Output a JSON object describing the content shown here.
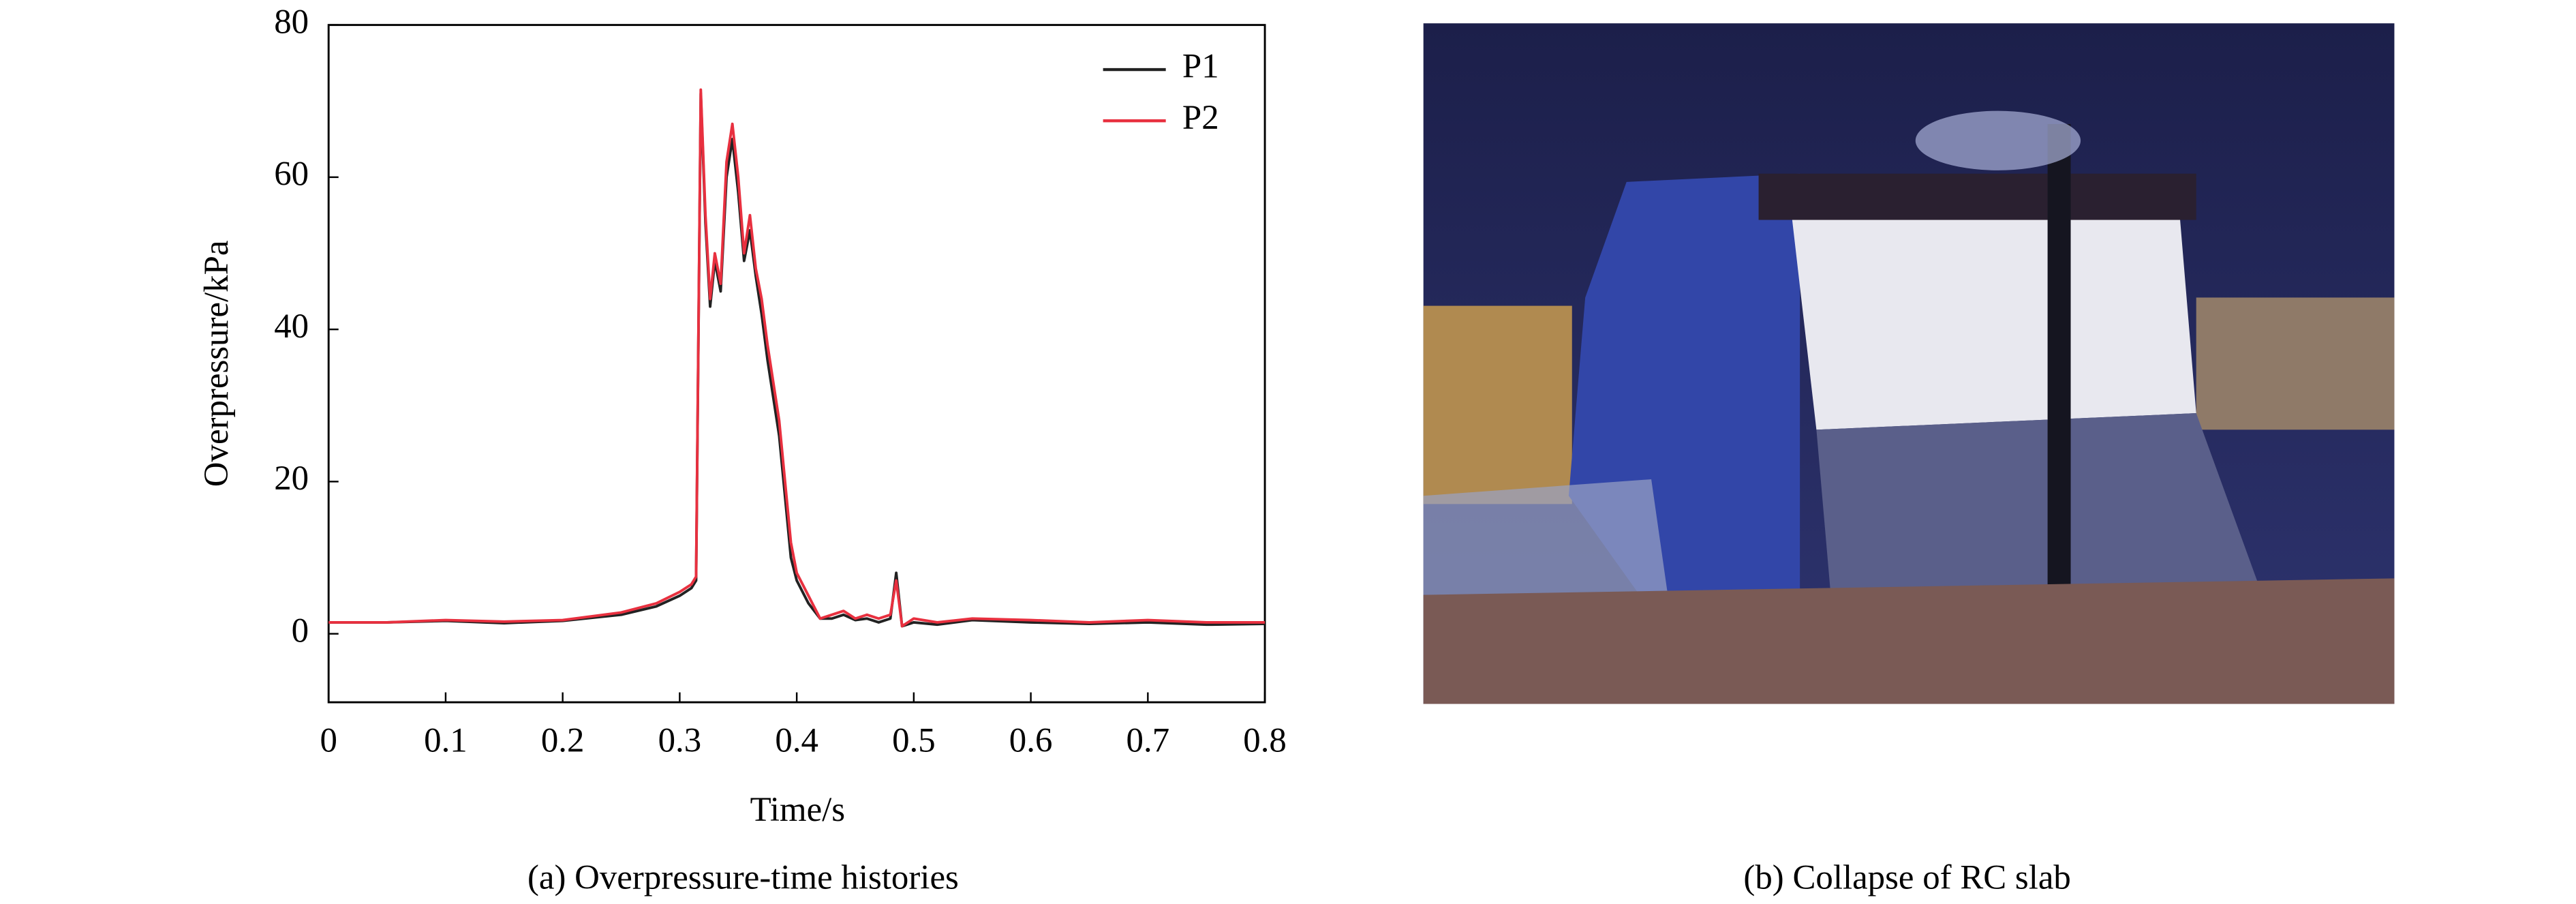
{
  "chart_data": {
    "type": "line",
    "caption": "(a) Overpressure-time histories",
    "xlabel": "Time/s",
    "ylabel": "Overpressure/kPa",
    "xlim": [
      0,
      0.8
    ],
    "ylim": [
      -9,
      80
    ],
    "xticks": [
      0,
      0.1,
      0.2,
      0.3,
      0.4,
      0.5,
      0.6,
      0.7,
      0.8
    ],
    "yticks": [
      0,
      20,
      40,
      60,
      80
    ],
    "legend": "upper right",
    "x": [
      0,
      0.05,
      0.1,
      0.15,
      0.2,
      0.25,
      0.28,
      0.3,
      0.31,
      0.314,
      0.318,
      0.322,
      0.326,
      0.33,
      0.335,
      0.34,
      0.345,
      0.35,
      0.355,
      0.36,
      0.365,
      0.37,
      0.375,
      0.38,
      0.385,
      0.39,
      0.395,
      0.4,
      0.41,
      0.42,
      0.43,
      0.44,
      0.45,
      0.46,
      0.47,
      0.48,
      0.485,
      0.49,
      0.5,
      0.52,
      0.55,
      0.6,
      0.65,
      0.7,
      0.75,
      0.8
    ],
    "series": [
      {
        "name": "P1",
        "color": "#222222",
        "values": [
          1.5,
          1.5,
          1.7,
          1.4,
          1.7,
          2.5,
          3.6,
          5,
          6,
          7,
          71,
          54,
          43,
          49,
          45,
          60,
          65,
          58,
          49,
          53,
          47,
          42,
          36,
          31,
          26,
          18,
          10,
          7,
          4,
          2,
          2,
          2.5,
          1.8,
          2,
          1.5,
          2,
          8,
          1,
          1.5,
          1.2,
          1.8,
          1.5,
          1.3,
          1.5,
          1.2,
          1.3
        ]
      },
      {
        "name": "P2",
        "color": "#e8303f",
        "values": [
          1.5,
          1.5,
          1.8,
          1.6,
          1.8,
          2.8,
          4,
          5.5,
          6.5,
          7.5,
          71.5,
          55,
          44,
          50,
          46,
          62,
          67,
          60,
          50,
          55,
          48,
          44,
          38,
          33,
          28,
          20,
          12,
          8,
          5,
          2,
          2.5,
          3,
          2,
          2.5,
          2,
          2.5,
          7,
          1,
          2,
          1.5,
          2,
          1.8,
          1.5,
          1.8,
          1.5,
          1.5
        ]
      }
    ]
  },
  "photo": {
    "caption": "(b) Collapse of RC slab"
  }
}
